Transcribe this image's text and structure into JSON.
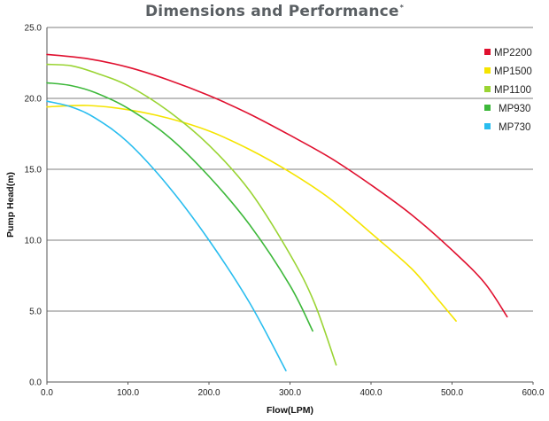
{
  "title": "Dimensions and Performance",
  "title_mark": "*",
  "chart_data": {
    "type": "line",
    "title": "Dimensions and Performance",
    "xlabel": "Flow(LPM)",
    "ylabel": "Pump Head(m)",
    "xlim": [
      0,
      600
    ],
    "ylim": [
      0,
      25
    ],
    "xticks": [
      "0.0",
      "100.0",
      "200.0",
      "300.0",
      "400.0",
      "500.0",
      "600.0"
    ],
    "yticks": [
      "0.0",
      "5.0",
      "10.0",
      "15.0",
      "20.0",
      "25.0"
    ],
    "grid": "horizontal",
    "legend_position": "top-right",
    "series": [
      {
        "name": "MP2200",
        "color": "#e0102f",
        "points": [
          [
            0,
            23.1
          ],
          [
            50,
            22.8
          ],
          [
            100,
            22.2
          ],
          [
            150,
            21.3
          ],
          [
            200,
            20.2
          ],
          [
            250,
            18.9
          ],
          [
            300,
            17.4
          ],
          [
            350,
            15.8
          ],
          [
            400,
            13.9
          ],
          [
            450,
            11.8
          ],
          [
            500,
            9.3
          ],
          [
            540,
            7.0
          ],
          [
            568,
            4.6
          ]
        ]
      },
      {
        "name": "MP1500",
        "color": "#f5e400",
        "points": [
          [
            0,
            19.4
          ],
          [
            50,
            19.5
          ],
          [
            100,
            19.2
          ],
          [
            150,
            18.6
          ],
          [
            200,
            17.7
          ],
          [
            250,
            16.4
          ],
          [
            300,
            14.8
          ],
          [
            350,
            12.9
          ],
          [
            400,
            10.5
          ],
          [
            450,
            8.0
          ],
          [
            480,
            6.0
          ],
          [
            505,
            4.3
          ]
        ]
      },
      {
        "name": "MP1100",
        "color": "#9ad433",
        "points": [
          [
            0,
            22.4
          ],
          [
            30,
            22.3
          ],
          [
            60,
            21.8
          ],
          [
            100,
            20.9
          ],
          [
            150,
            19.1
          ],
          [
            200,
            16.7
          ],
          [
            250,
            13.5
          ],
          [
            300,
            9.0
          ],
          [
            330,
            5.6
          ],
          [
            357,
            1.2
          ]
        ]
      },
      {
        "name": "MP930",
        "color": "#3db83a",
        "points": [
          [
            0,
            21.1
          ],
          [
            30,
            20.9
          ],
          [
            60,
            20.4
          ],
          [
            100,
            19.3
          ],
          [
            150,
            17.3
          ],
          [
            200,
            14.5
          ],
          [
            250,
            11.1
          ],
          [
            300,
            6.8
          ],
          [
            328,
            3.6
          ]
        ]
      },
      {
        "name": "MP730",
        "color": "#29bdef",
        "points": [
          [
            0,
            19.8
          ],
          [
            30,
            19.4
          ],
          [
            60,
            18.6
          ],
          [
            100,
            16.9
          ],
          [
            150,
            13.8
          ],
          [
            200,
            10.0
          ],
          [
            250,
            5.6
          ],
          [
            295,
            0.8
          ]
        ]
      }
    ]
  }
}
